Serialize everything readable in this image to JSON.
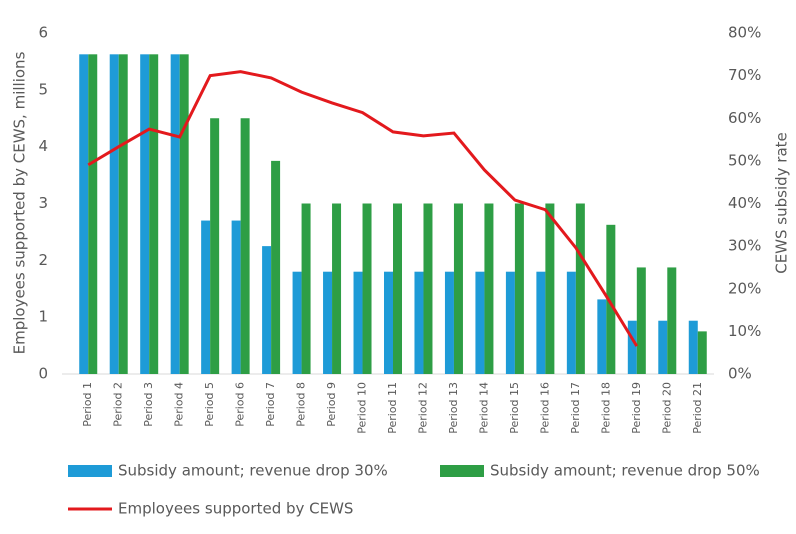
{
  "chart_data": {
    "type": "bar",
    "ylabel": "Employees supported by CEWS, millions",
    "y2label": "CEWS subsidy rate",
    "categories": [
      "Period 1",
      "Period 2",
      "Period 3",
      "Period 4",
      "Period 5",
      "Period 6",
      "Period 7",
      "Period 8",
      "Period 9",
      "Period 10",
      "Period 11",
      "Period 12",
      "Period 13",
      "Period 14",
      "Period 15",
      "Period 16",
      "Period 17",
      "Period 18",
      "Period 19",
      "Period 20",
      "Period 21"
    ],
    "series": [
      {
        "name": "Subsidy amount; revenue drop 30%",
        "type": "bar",
        "axis": "y2",
        "color": "#1e9bd7",
        "values": [
          75,
          75,
          75,
          75,
          36,
          36,
          30,
          24,
          24,
          24,
          24,
          24,
          24,
          24,
          24,
          24,
          24,
          17.5,
          12.5,
          12.5,
          12.5
        ]
      },
      {
        "name": "Subsidy amount; revenue drop 50%",
        "type": "bar",
        "axis": "y2",
        "color": "#2e9e45",
        "values": [
          75,
          75,
          75,
          75,
          60,
          60,
          50,
          40,
          40,
          40,
          40,
          40,
          40,
          40,
          40,
          40,
          40,
          35,
          25,
          25,
          10
        ]
      },
      {
        "name": "Employees supported by CEWS",
        "type": "line",
        "color": "#e3191d",
        "values": [
          3.68,
          4.0,
          4.31,
          4.17,
          5.25,
          5.32,
          5.21,
          4.96,
          4.77,
          4.6,
          4.26,
          4.19,
          4.24,
          3.59,
          3.06,
          2.89,
          2.22,
          1.37,
          0.49,
          null,
          null
        ]
      }
    ],
    "ylim": [
      0,
      6
    ],
    "yticks": [
      0,
      1,
      2,
      3,
      4,
      5,
      6
    ],
    "y2lim": [
      0,
      80
    ],
    "y2ticks": [
      {
        "value": 0,
        "label": "0%"
      },
      {
        "value": 10,
        "label": "10%"
      },
      {
        "value": 20,
        "label": "20%"
      },
      {
        "value": 30,
        "label": "30%"
      },
      {
        "value": 40,
        "label": "40%"
      },
      {
        "value": 50,
        "label": "50%"
      },
      {
        "value": 60,
        "label": "60%"
      },
      {
        "value": 70,
        "label": "70%"
      },
      {
        "value": 80,
        "label": "80%"
      }
    ],
    "legend": "bottom"
  }
}
